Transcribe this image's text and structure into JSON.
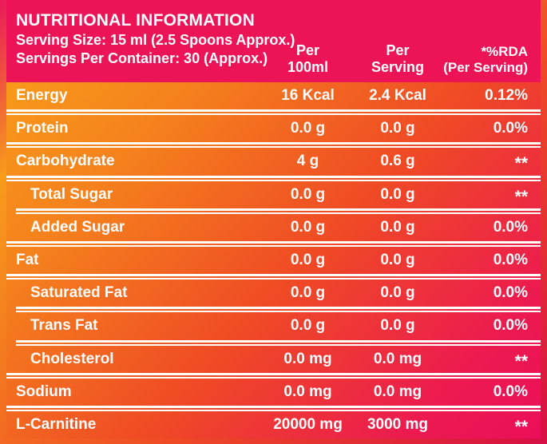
{
  "header": {
    "title": "NUTRITIONAL INFORMATION",
    "serving_size": "Serving Size: 15 ml (2.5 Spoons Approx.)",
    "servings_per_container": "Servings Per Container: 30 (Approx.)",
    "columns": [
      {
        "line1": "Per",
        "line2": "100ml"
      },
      {
        "line1": "Per",
        "line2": "Serving"
      },
      {
        "line1": "*%RDA",
        "line2": "(Per Serving)"
      }
    ]
  },
  "table": {
    "column_keys": [
      "per_100ml",
      "per_serving",
      "rda_per_serving"
    ],
    "rows": [
      {
        "label": "Energy",
        "indent": false,
        "sep": "none",
        "values": [
          "16 Kcal",
          "2.4 Kcal",
          "0.12%"
        ]
      },
      {
        "label": "Protein",
        "indent": false,
        "sep": "full",
        "values": [
          "0.0 g",
          "0.0 g",
          "0.0%"
        ]
      },
      {
        "label": "Carbohydrate",
        "indent": false,
        "sep": "full",
        "values": [
          "4 g",
          "0.6 g",
          "**"
        ]
      },
      {
        "label": "Total Sugar",
        "indent": true,
        "sep": "full",
        "values": [
          "0.0 g",
          "0.0 g",
          "**"
        ]
      },
      {
        "label": "Added Sugar",
        "indent": true,
        "sep": "indented",
        "values": [
          "0.0 g",
          "0.0 g",
          "0.0%"
        ]
      },
      {
        "label": "Fat",
        "indent": false,
        "sep": "full",
        "values": [
          "0.0 g",
          "0.0 g",
          "0.0%"
        ]
      },
      {
        "label": "Saturated Fat",
        "indent": true,
        "sep": "full",
        "values": [
          "0.0 g",
          "0.0 g",
          "0.0%"
        ]
      },
      {
        "label": "Trans Fat",
        "indent": true,
        "sep": "indented",
        "values": [
          "0.0 g",
          "0.0 g",
          "0.0%"
        ]
      },
      {
        "label": "Cholesterol",
        "indent": true,
        "sep": "indented",
        "values": [
          "0.0 mg",
          "0.0 mg",
          "**"
        ]
      },
      {
        "label": "Sodium",
        "indent": false,
        "sep": "full",
        "values": [
          "0.0 mg",
          "0.0 mg",
          "0.0%"
        ]
      },
      {
        "label": "L-Carnitine",
        "indent": false,
        "sep": "full",
        "values": [
          "20000 mg",
          "3000 mg",
          "**"
        ]
      }
    ]
  },
  "colors": {
    "text": "#FFFFFF",
    "header_pink": "#EC1456",
    "frame_c1": "#E8195B",
    "frame_c2": "#F79C1B",
    "frame_c3": "#EE4A25",
    "frame_c4": "#D60F44",
    "body_c1": "#F9A319",
    "body_c2": "#F5811D",
    "body_c3": "#EF4A25",
    "body_c4": "#EC1B4F",
    "body_c5": "#EB0E5A"
  }
}
